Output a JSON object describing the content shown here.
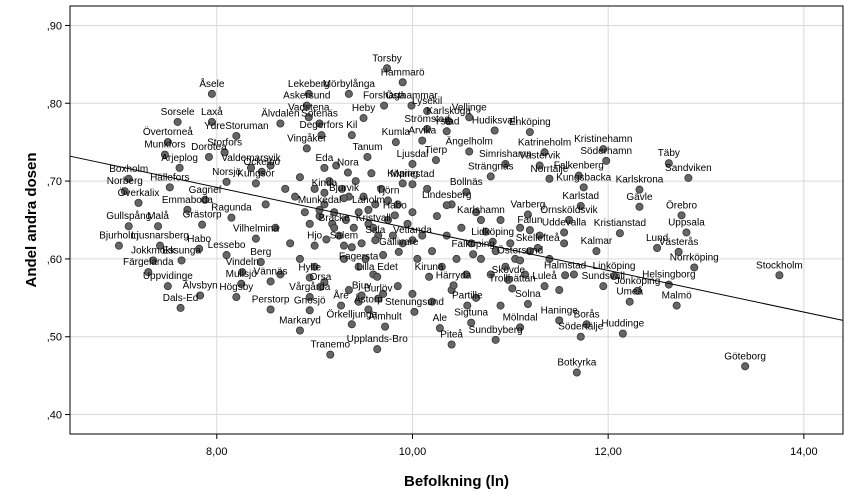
{
  "chart_data": {
    "type": "scatter",
    "xlabel": "Befolkning (ln)",
    "ylabel": "Andel andra dosen",
    "xlim": [
      6.5,
      14.4
    ],
    "ylim": [
      0.375,
      0.925
    ],
    "x_ticks": [
      8,
      10,
      12,
      14
    ],
    "x_tick_labels": [
      "8,00",
      "10,00",
      "12,00",
      "14,00"
    ],
    "y_ticks": [
      0.4,
      0.5,
      0.6,
      0.7,
      0.8,
      0.9
    ],
    "y_tick_labels": [
      ",40",
      ",50",
      ",60",
      ",70",
      ",80",
      ",90"
    ],
    "grid": "both",
    "marker_color": "#666666",
    "fit_line": {
      "x": [
        6.5,
        14.4
      ],
      "y": [
        0.732,
        0.521
      ]
    },
    "labeled_points": [
      {
        "name": "Torsby",
        "x": 9.74,
        "y": 0.845
      },
      {
        "name": "Hammarö",
        "x": 9.9,
        "y": 0.827
      },
      {
        "name": "Åsele",
        "x": 7.95,
        "y": 0.812
      },
      {
        "name": "Lekeberg",
        "x": 8.94,
        "y": 0.812
      },
      {
        "name": "Mörbylånga",
        "x": 9.35,
        "y": 0.812
      },
      {
        "name": "Forshaga",
        "x": 9.71,
        "y": 0.797
      },
      {
        "name": "Östhammar",
        "x": 9.99,
        "y": 0.797
      },
      {
        "name": "Askersund",
        "x": 8.92,
        "y": 0.797
      },
      {
        "name": "Lysekil",
        "x": 10.15,
        "y": 0.79
      },
      {
        "name": "Vadstena",
        "x": 8.94,
        "y": 0.782
      },
      {
        "name": "Heby",
        "x": 9.5,
        "y": 0.781
      },
      {
        "name": "Vellinge",
        "x": 10.58,
        "y": 0.782
      },
      {
        "name": "Karlskoga",
        "x": 10.37,
        "y": 0.777
      },
      {
        "name": "Sorsele",
        "x": 7.6,
        "y": 0.776
      },
      {
        "name": "Laxå",
        "x": 7.95,
        "y": 0.776
      },
      {
        "name": "Älvdalen",
        "x": 8.65,
        "y": 0.774
      },
      {
        "name": "Sotenäs",
        "x": 9.05,
        "y": 0.774
      },
      {
        "name": "Strömstad",
        "x": 10.15,
        "y": 0.767
      },
      {
        "name": "Ystad",
        "x": 10.35,
        "y": 0.764
      },
      {
        "name": "Hudiksvall",
        "x": 10.84,
        "y": 0.765
      },
      {
        "name": "Enköping",
        "x": 11.2,
        "y": 0.763
      },
      {
        "name": "YdreStoruman",
        "x": 8.2,
        "y": 0.758
      },
      {
        "name": "Degerfors",
        "x": 9.07,
        "y": 0.759
      },
      {
        "name": "Kil",
        "x": 9.38,
        "y": 0.759
      },
      {
        "name": "Arvika",
        "x": 10.1,
        "y": 0.752
      },
      {
        "name": "Kumla",
        "x": 9.83,
        "y": 0.75
      },
      {
        "name": "Övertorneå",
        "x": 7.5,
        "y": 0.75
      },
      {
        "name": "Vingåker",
        "x": 8.92,
        "y": 0.742
      },
      {
        "name": "Storfors",
        "x": 8.08,
        "y": 0.737
      },
      {
        "name": "Ängelholm",
        "x": 10.58,
        "y": 0.738
      },
      {
        "name": "Katrineholm",
        "x": 11.35,
        "y": 0.737
      },
      {
        "name": "Kristinehamn",
        "x": 11.95,
        "y": 0.741
      },
      {
        "name": "Munkfors",
        "x": 7.47,
        "y": 0.734
      },
      {
        "name": "Dorotea",
        "x": 7.92,
        "y": 0.731
      },
      {
        "name": "Tanum",
        "x": 9.54,
        "y": 0.731
      },
      {
        "name": "Tierp",
        "x": 10.24,
        "y": 0.727
      },
      {
        "name": "Söderhamn",
        "x": 11.98,
        "y": 0.726
      },
      {
        "name": "Ljusdal",
        "x": 10.0,
        "y": 0.722
      },
      {
        "name": "Simrishamn",
        "x": 10.95,
        "y": 0.722
      },
      {
        "name": "Västervik",
        "x": 11.3,
        "y": 0.72
      },
      {
        "name": "Täby",
        "x": 12.62,
        "y": 0.723
      },
      {
        "name": "Eda",
        "x": 9.1,
        "y": 0.717
      },
      {
        "name": "Arjeplog",
        "x": 7.62,
        "y": 0.717
      },
      {
        "name": "Valdemarsvik",
        "x": 8.35,
        "y": 0.717
      },
      {
        "name": "Nora",
        "x": 9.34,
        "y": 0.711
      },
      {
        "name": "Ockelbo",
        "x": 8.46,
        "y": 0.712
      },
      {
        "name": "Falkenberg",
        "x": 11.7,
        "y": 0.707
      },
      {
        "name": "Strängnäs",
        "x": 10.8,
        "y": 0.706
      },
      {
        "name": "Norrtälje",
        "x": 11.4,
        "y": 0.703
      },
      {
        "name": "Sandviken",
        "x": 12.82,
        "y": 0.704
      },
      {
        "name": "Boxholm",
        "x": 7.1,
        "y": 0.703
      },
      {
        "name": "Norsjö",
        "x": 8.1,
        "y": 0.699
      },
      {
        "name": "Köping",
        "x": 9.9,
        "y": 0.697
      },
      {
        "name": "Mariestad",
        "x": 10.0,
        "y": 0.696
      },
      {
        "name": "Kungsör",
        "x": 8.4,
        "y": 0.697
      },
      {
        "name": "Kungsbacka",
        "x": 11.75,
        "y": 0.692
      },
      {
        "name": "Hällefors",
        "x": 7.52,
        "y": 0.692
      },
      {
        "name": "Norberg",
        "x": 7.06,
        "y": 0.687
      },
      {
        "name": "Kinda",
        "x": 9.1,
        "y": 0.685
      },
      {
        "name": "Bollnäs",
        "x": 10.55,
        "y": 0.686
      },
      {
        "name": "Karlskrona",
        "x": 12.32,
        "y": 0.689
      },
      {
        "name": "Gagnef",
        "x": 7.88,
        "y": 0.676
      },
      {
        "name": "Bjurvik",
        "x": 9.3,
        "y": 0.678
      },
      {
        "name": "Tjörn",
        "x": 9.75,
        "y": 0.675
      },
      {
        "name": "Överkalix",
        "x": 7.2,
        "y": 0.672
      },
      {
        "name": "Lindesberg",
        "x": 10.35,
        "y": 0.669
      },
      {
        "name": "Karlstad",
        "x": 11.72,
        "y": 0.668
      },
      {
        "name": "Gävle",
        "x": 12.32,
        "y": 0.667
      },
      {
        "name": "Emmaboda",
        "x": 7.7,
        "y": 0.663
      },
      {
        "name": "Munkedal",
        "x": 9.05,
        "y": 0.663
      },
      {
        "name": "Laholm",
        "x": 9.55,
        "y": 0.663
      },
      {
        "name": "Habo",
        "x": 9.82,
        "y": 0.656
      },
      {
        "name": "Varberg",
        "x": 11.18,
        "y": 0.657
      },
      {
        "name": "Örebro",
        "x": 12.75,
        "y": 0.656
      },
      {
        "name": "Ragunda",
        "x": 8.15,
        "y": 0.653
      },
      {
        "name": "Karlshamn",
        "x": 10.7,
        "y": 0.65
      },
      {
        "name": "Örnsköldsvik",
        "x": 11.6,
        "y": 0.65
      },
      {
        "name": "Gullspång",
        "x": 7.1,
        "y": 0.642
      },
      {
        "name": "Malå",
        "x": 7.4,
        "y": 0.642
      },
      {
        "name": "Grästorp",
        "x": 7.85,
        "y": 0.644
      },
      {
        "name": "Bräcke",
        "x": 9.2,
        "y": 0.64
      },
      {
        "name": "Kristvall",
        "x": 9.6,
        "y": 0.64
      },
      {
        "name": "Falun",
        "x": 11.2,
        "y": 0.637
      },
      {
        "name": "Uddevalla",
        "x": 11.55,
        "y": 0.634
      },
      {
        "name": "Kristianstad",
        "x": 12.12,
        "y": 0.633
      },
      {
        "name": "Uppsala",
        "x": 12.8,
        "y": 0.634
      },
      {
        "name": "Vilhelmina",
        "x": 8.4,
        "y": 0.626
      },
      {
        "name": "Sala",
        "x": 9.62,
        "y": 0.624
      },
      {
        "name": "Vetlanda",
        "x": 10.0,
        "y": 0.624
      },
      {
        "name": "Lidköping",
        "x": 10.82,
        "y": 0.622
      },
      {
        "name": "Bjurholm",
        "x": 7.0,
        "y": 0.617
      },
      {
        "name": "Ljusnarsberg",
        "x": 7.42,
        "y": 0.617
      },
      {
        "name": "Habo",
        "x": 7.82,
        "y": 0.613
      },
      {
        "name": "Hjo",
        "x": 9.0,
        "y": 0.617
      },
      {
        "name": "Salem",
        "x": 9.3,
        "y": 0.617
      },
      {
        "name": "Skellefteå",
        "x": 11.28,
        "y": 0.614
      },
      {
        "name": "Kalmar",
        "x": 11.88,
        "y": 0.61
      },
      {
        "name": "Lund",
        "x": 12.5,
        "y": 0.614
      },
      {
        "name": "Västerås",
        "x": 12.72,
        "y": 0.609
      },
      {
        "name": "Gällivare",
        "x": 9.86,
        "y": 0.609
      },
      {
        "name": "Falköping",
        "x": 10.62,
        "y": 0.606
      },
      {
        "name": "Lessebo",
        "x": 8.1,
        "y": 0.605
      },
      {
        "name": "Jokkmokk",
        "x": 7.35,
        "y": 0.598
      },
      {
        "name": "Essunga",
        "x": 7.64,
        "y": 0.598
      },
      {
        "name": "Berg",
        "x": 8.45,
        "y": 0.596
      },
      {
        "name": "Östersund",
        "x": 11.1,
        "y": 0.598
      },
      {
        "name": "Norrköping",
        "x": 12.88,
        "y": 0.589
      },
      {
        "name": "Fagersta",
        "x": 9.45,
        "y": 0.59
      },
      {
        "name": "Färgelanda",
        "x": 7.3,
        "y": 0.583
      },
      {
        "name": "Vindeln",
        "x": 8.26,
        "y": 0.583
      },
      {
        "name": "Lilla Edet",
        "x": 9.64,
        "y": 0.577
      },
      {
        "name": "Kiruna",
        "x": 10.17,
        "y": 0.577
      },
      {
        "name": "Halmstad",
        "x": 11.56,
        "y": 0.579
      },
      {
        "name": "Linköping",
        "x": 12.06,
        "y": 0.578
      },
      {
        "name": "Hylte",
        "x": 8.95,
        "y": 0.576
      },
      {
        "name": "Vännäs",
        "x": 8.55,
        "y": 0.571
      },
      {
        "name": "Trollhättan",
        "x": 11.02,
        "y": 0.562
      },
      {
        "name": "Stockholm",
        "x": 13.75,
        "y": 0.579
      },
      {
        "name": "Mullsjö",
        "x": 8.25,
        "y": 0.568
      },
      {
        "name": "Orsa",
        "x": 9.06,
        "y": 0.564
      },
      {
        "name": "Härryda",
        "x": 10.42,
        "y": 0.566
      },
      {
        "name": "Uppvidinge",
        "x": 7.5,
        "y": 0.565
      },
      {
        "name": "Luleå",
        "x": 11.35,
        "y": 0.565
      },
      {
        "name": "Sundsvall",
        "x": 11.95,
        "y": 0.565
      },
      {
        "name": "Helsingborg",
        "x": 12.62,
        "y": 0.567
      },
      {
        "name": "Jönköping",
        "x": 12.3,
        "y": 0.559
      },
      {
        "name": "Skövde",
        "x": 10.98,
        "y": 0.573
      },
      {
        "name": "Bjuv",
        "x": 9.48,
        "y": 0.553
      },
      {
        "name": "Vårgårda",
        "x": 8.95,
        "y": 0.551
      },
      {
        "name": "Högsby",
        "x": 8.2,
        "y": 0.551
      },
      {
        "name": "Älvsbyn",
        "x": 7.83,
        "y": 0.553
      },
      {
        "name": "Burlöv",
        "x": 9.65,
        "y": 0.549
      },
      {
        "name": "Solna",
        "x": 11.18,
        "y": 0.542
      },
      {
        "name": "Partille",
        "x": 10.56,
        "y": 0.54
      },
      {
        "name": "Umeå",
        "x": 12.22,
        "y": 0.545
      },
      {
        "name": "Åre",
        "x": 9.27,
        "y": 0.54
      },
      {
        "name": "Malmö",
        "x": 12.7,
        "y": 0.54
      },
      {
        "name": "Dals-Ed",
        "x": 7.63,
        "y": 0.537
      },
      {
        "name": "Åstorp",
        "x": 9.55,
        "y": 0.535
      },
      {
        "name": "Perstorp",
        "x": 8.55,
        "y": 0.535
      },
      {
        "name": "Gnosjö",
        "x": 8.95,
        "y": 0.534
      },
      {
        "name": "Stenungsund",
        "x": 10.02,
        "y": 0.532
      },
      {
        "name": "Haninge",
        "x": 11.5,
        "y": 0.521
      },
      {
        "name": "Borås",
        "x": 11.78,
        "y": 0.516
      },
      {
        "name": "Sigtuna",
        "x": 10.6,
        "y": 0.518
      },
      {
        "name": "Mölndal",
        "x": 11.1,
        "y": 0.512
      },
      {
        "name": "Örkelljunga",
        "x": 9.38,
        "y": 0.516
      },
      {
        "name": "Ale",
        "x": 10.28,
        "y": 0.511
      },
      {
        "name": "Markaryd",
        "x": 8.85,
        "y": 0.508
      },
      {
        "name": "Älmhult",
        "x": 9.72,
        "y": 0.513
      },
      {
        "name": "Huddinge",
        "x": 12.15,
        "y": 0.504
      },
      {
        "name": "Södertälje",
        "x": 11.72,
        "y": 0.5
      },
      {
        "name": "Sundbyberg",
        "x": 10.85,
        "y": 0.496
      },
      {
        "name": "Piteå",
        "x": 10.4,
        "y": 0.49
      },
      {
        "name": "Upplands-Bro",
        "x": 9.64,
        "y": 0.484
      },
      {
        "name": "Tranemo",
        "x": 9.16,
        "y": 0.477
      },
      {
        "name": "Göteborg",
        "x": 13.4,
        "y": 0.462
      },
      {
        "name": "Botkyrka",
        "x": 11.68,
        "y": 0.454
      }
    ],
    "unlabeled_points": [
      {
        "x": 8.55,
        "y": 0.72
      },
      {
        "x": 8.7,
        "y": 0.69
      },
      {
        "x": 8.8,
        "y": 0.68
      },
      {
        "x": 8.85,
        "y": 0.705
      },
      {
        "x": 8.9,
        "y": 0.66
      },
      {
        "x": 8.95,
        "y": 0.645
      },
      {
        "x": 9.0,
        "y": 0.69
      },
      {
        "x": 9.05,
        "y": 0.655
      },
      {
        "x": 9.1,
        "y": 0.67
      },
      {
        "x": 9.12,
        "y": 0.625
      },
      {
        "x": 9.15,
        "y": 0.7
      },
      {
        "x": 9.18,
        "y": 0.645
      },
      {
        "x": 9.2,
        "y": 0.66
      },
      {
        "x": 9.22,
        "y": 0.72
      },
      {
        "x": 9.25,
        "y": 0.63
      },
      {
        "x": 9.28,
        "y": 0.69
      },
      {
        "x": 9.3,
        "y": 0.6
      },
      {
        "x": 9.32,
        "y": 0.65
      },
      {
        "x": 9.35,
        "y": 0.68
      },
      {
        "x": 9.38,
        "y": 0.615
      },
      {
        "x": 9.4,
        "y": 0.64
      },
      {
        "x": 9.42,
        "y": 0.7
      },
      {
        "x": 9.45,
        "y": 0.66
      },
      {
        "x": 9.48,
        "y": 0.62
      },
      {
        "x": 9.5,
        "y": 0.68
      },
      {
        "x": 9.52,
        "y": 0.6
      },
      {
        "x": 9.55,
        "y": 0.645
      },
      {
        "x": 9.58,
        "y": 0.71
      },
      {
        "x": 9.6,
        "y": 0.58
      },
      {
        "x": 9.62,
        "y": 0.67
      },
      {
        "x": 9.65,
        "y": 0.63
      },
      {
        "x": 9.68,
        "y": 0.69
      },
      {
        "x": 9.7,
        "y": 0.605
      },
      {
        "x": 9.75,
        "y": 0.65
      },
      {
        "x": 9.8,
        "y": 0.63
      },
      {
        "x": 9.85,
        "y": 0.67
      },
      {
        "x": 9.9,
        "y": 0.62
      },
      {
        "x": 9.95,
        "y": 0.645
      },
      {
        "x": 10.0,
        "y": 0.66
      },
      {
        "x": 10.05,
        "y": 0.6
      },
      {
        "x": 10.1,
        "y": 0.63
      },
      {
        "x": 10.15,
        "y": 0.69
      },
      {
        "x": 10.2,
        "y": 0.61
      },
      {
        "x": 10.25,
        "y": 0.655
      },
      {
        "x": 10.3,
        "y": 0.59
      },
      {
        "x": 10.35,
        "y": 0.63
      },
      {
        "x": 10.4,
        "y": 0.67
      },
      {
        "x": 10.45,
        "y": 0.6
      },
      {
        "x": 10.5,
        "y": 0.64
      },
      {
        "x": 10.55,
        "y": 0.58
      },
      {
        "x": 10.6,
        "y": 0.62
      },
      {
        "x": 10.65,
        "y": 0.66
      },
      {
        "x": 10.7,
        "y": 0.6
      },
      {
        "x": 10.75,
        "y": 0.635
      },
      {
        "x": 10.8,
        "y": 0.58
      },
      {
        "x": 10.85,
        "y": 0.61
      },
      {
        "x": 10.9,
        "y": 0.65
      },
      {
        "x": 10.95,
        "y": 0.59
      },
      {
        "x": 11.0,
        "y": 0.62
      },
      {
        "x": 11.05,
        "y": 0.6
      },
      {
        "x": 11.1,
        "y": 0.64
      },
      {
        "x": 11.15,
        "y": 0.58
      },
      {
        "x": 11.2,
        "y": 0.61
      },
      {
        "x": 11.3,
        "y": 0.63
      },
      {
        "x": 11.4,
        "y": 0.6
      },
      {
        "x": 11.5,
        "y": 0.56
      },
      {
        "x": 11.55,
        "y": 0.62
      },
      {
        "x": 11.65,
        "y": 0.58
      },
      {
        "x": 8.6,
        "y": 0.64
      },
      {
        "x": 8.75,
        "y": 0.62
      },
      {
        "x": 8.85,
        "y": 0.6
      },
      {
        "x": 8.5,
        "y": 0.67
      },
      {
        "x": 8.65,
        "y": 0.58
      },
      {
        "x": 9.0,
        "y": 0.59
      },
      {
        "x": 9.1,
        "y": 0.57
      },
      {
        "x": 9.35,
        "y": 0.56
      },
      {
        "x": 9.45,
        "y": 0.545
      },
      {
        "x": 9.7,
        "y": 0.555
      },
      {
        "x": 9.85,
        "y": 0.565
      },
      {
        "x": 10.0,
        "y": 0.555
      },
      {
        "x": 10.2,
        "y": 0.545
      },
      {
        "x": 10.4,
        "y": 0.56
      },
      {
        "x": 10.65,
        "y": 0.55
      },
      {
        "x": 10.9,
        "y": 0.54
      }
    ]
  }
}
